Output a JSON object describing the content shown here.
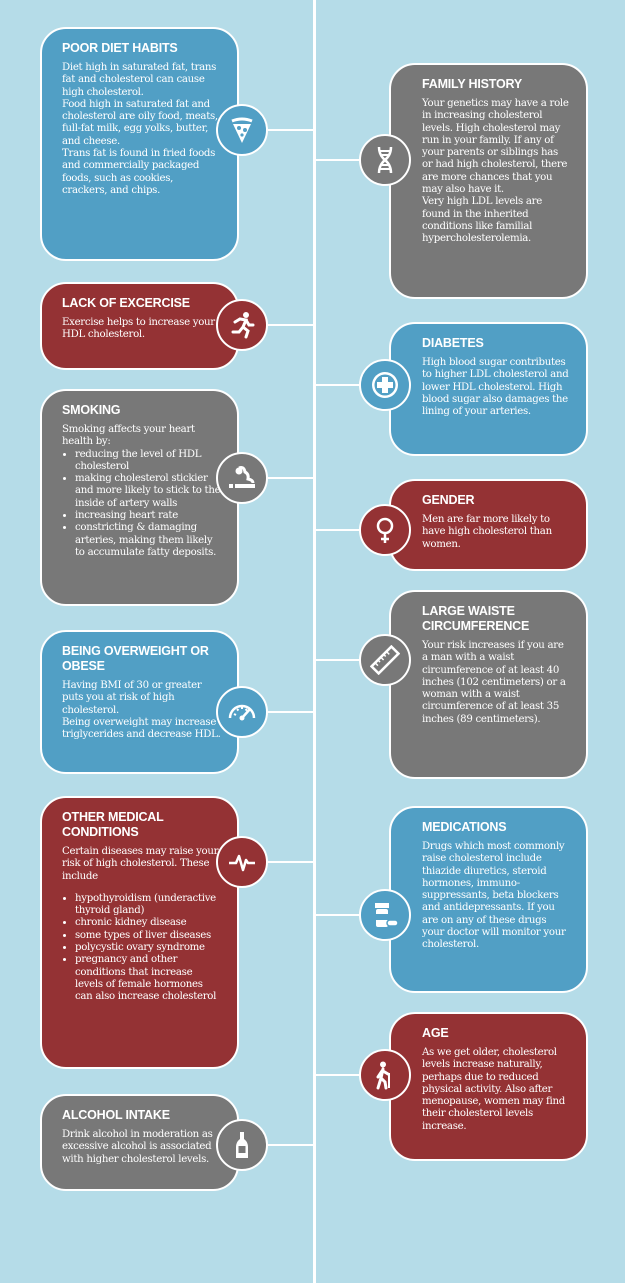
{
  "colors": {
    "background": "#b5dce8",
    "blue": "#519fc5",
    "gray": "#787878",
    "red": "#943234",
    "line": "#ffffff"
  },
  "left_cards": [
    {
      "title": "POOR DIET HABITS",
      "color": "blue",
      "icon": "pizza-icon",
      "paragraphs": [
        "Diet high in saturated fat, trans fat and cholesterol can cause high cholesterol.",
        "Food high in saturated fat and cholesterol are oily food, meats, full-fat milk, egg yolks, butter, and cheese.",
        "Trans fat is found in fried foods and commercially packaged foods, such as cookies, crackers, and chips."
      ],
      "bullets": []
    },
    {
      "title": "LACK OF EXCERCISE",
      "color": "red",
      "icon": "running-person-icon",
      "paragraphs": [
        "Exercise helps to increase your HDL cholesterol."
      ],
      "bullets": []
    },
    {
      "title": "SMOKING",
      "color": "gray",
      "icon": "cigarette-icon",
      "paragraphs": [
        "Smoking affects your heart health by:"
      ],
      "bullets": [
        "reducing the level of HDL cholesterol",
        "making cholesterol stickier and more likely to stick to the inside of artery walls",
        "increasing heart rate",
        "constricting & damaging arteries, making them likely to accumulate fatty deposits."
      ]
    },
    {
      "title": "BEING OVERWEIGHT OR OBESE",
      "color": "blue",
      "icon": "gauge-icon",
      "paragraphs": [
        "Having BMI of 30 or greater puts you at risk of high cholesterol.",
        "Being overweight may increase triglycerides and decrease HDL."
      ],
      "bullets": []
    },
    {
      "title": "OTHER MEDICAL CONDITIONS",
      "color": "red",
      "icon": "heartbeat-icon",
      "paragraphs": [
        "Certain diseases may raise your risk of high cholesterol. These include"
      ],
      "bullets": [
        "hypothyroidism (underactive thyroid gland)",
        "chronic kidney disease",
        "some types of liver diseases",
        "polycystic ovary syndrome",
        "pregnancy and other conditions that increase levels of female hormones can also increase cholesterol"
      ]
    },
    {
      "title": "ALCOHOL INTAKE",
      "color": "gray",
      "icon": "bottle-icon",
      "paragraphs": [
        "Drink alcohol in moderation as excessive alcohol is associated with higher cholesterol levels."
      ],
      "bullets": []
    }
  ],
  "right_cards": [
    {
      "title": "FAMILY HISTORY",
      "color": "gray",
      "icon": "dna-icon",
      "paragraphs": [
        "Your genetics may have a role in increasing cholesterol levels. High cholesterol may run in your family. If any of your parents or siblings has or had high cholesterol, there are more chances that you may also have it.",
        "Very high LDL levels are found in the inherited conditions like familial hypercholesterolemia."
      ],
      "bullets": []
    },
    {
      "title": "DIABETES",
      "color": "blue",
      "icon": "medical-cross-icon",
      "paragraphs": [
        "High blood sugar contributes to higher LDL cholesterol and lower HDL cholesterol. High blood sugar also damages the lining of your arteries."
      ],
      "bullets": []
    },
    {
      "title": "GENDER",
      "color": "red",
      "icon": "female-symbol-icon",
      "paragraphs": [
        "Men are far more likely to have high cholesterol than women."
      ],
      "bullets": []
    },
    {
      "title": "LARGE WAISTE CIRCUMFERENCE",
      "color": "gray",
      "icon": "ruler-icon",
      "paragraphs": [
        "Your risk increases if you are a man with a waist circumference of at least 40 inches (102 centimeters) or a woman with a waist circumference of at least 35 inches (89 centimeters)."
      ],
      "bullets": []
    },
    {
      "title": "MEDICATIONS",
      "color": "blue",
      "icon": "pill-bottle-icon",
      "paragraphs": [
        "Drugs which most commonly raise cholesterol include thiazide diuretics, steroid hormones, immuno-suppressants, beta blockers and antidepressants.  If you are on any of these drugs your doctor will monitor your cholesterol."
      ],
      "bullets": []
    },
    {
      "title": "AGE",
      "color": "red",
      "icon": "elderly-person-icon",
      "paragraphs": [
        "As we get older, cholesterol levels increase naturally, perhaps due to reduced physical activity. Also after menopause, women may find their cholesterol levels increase."
      ],
      "bullets": []
    }
  ]
}
